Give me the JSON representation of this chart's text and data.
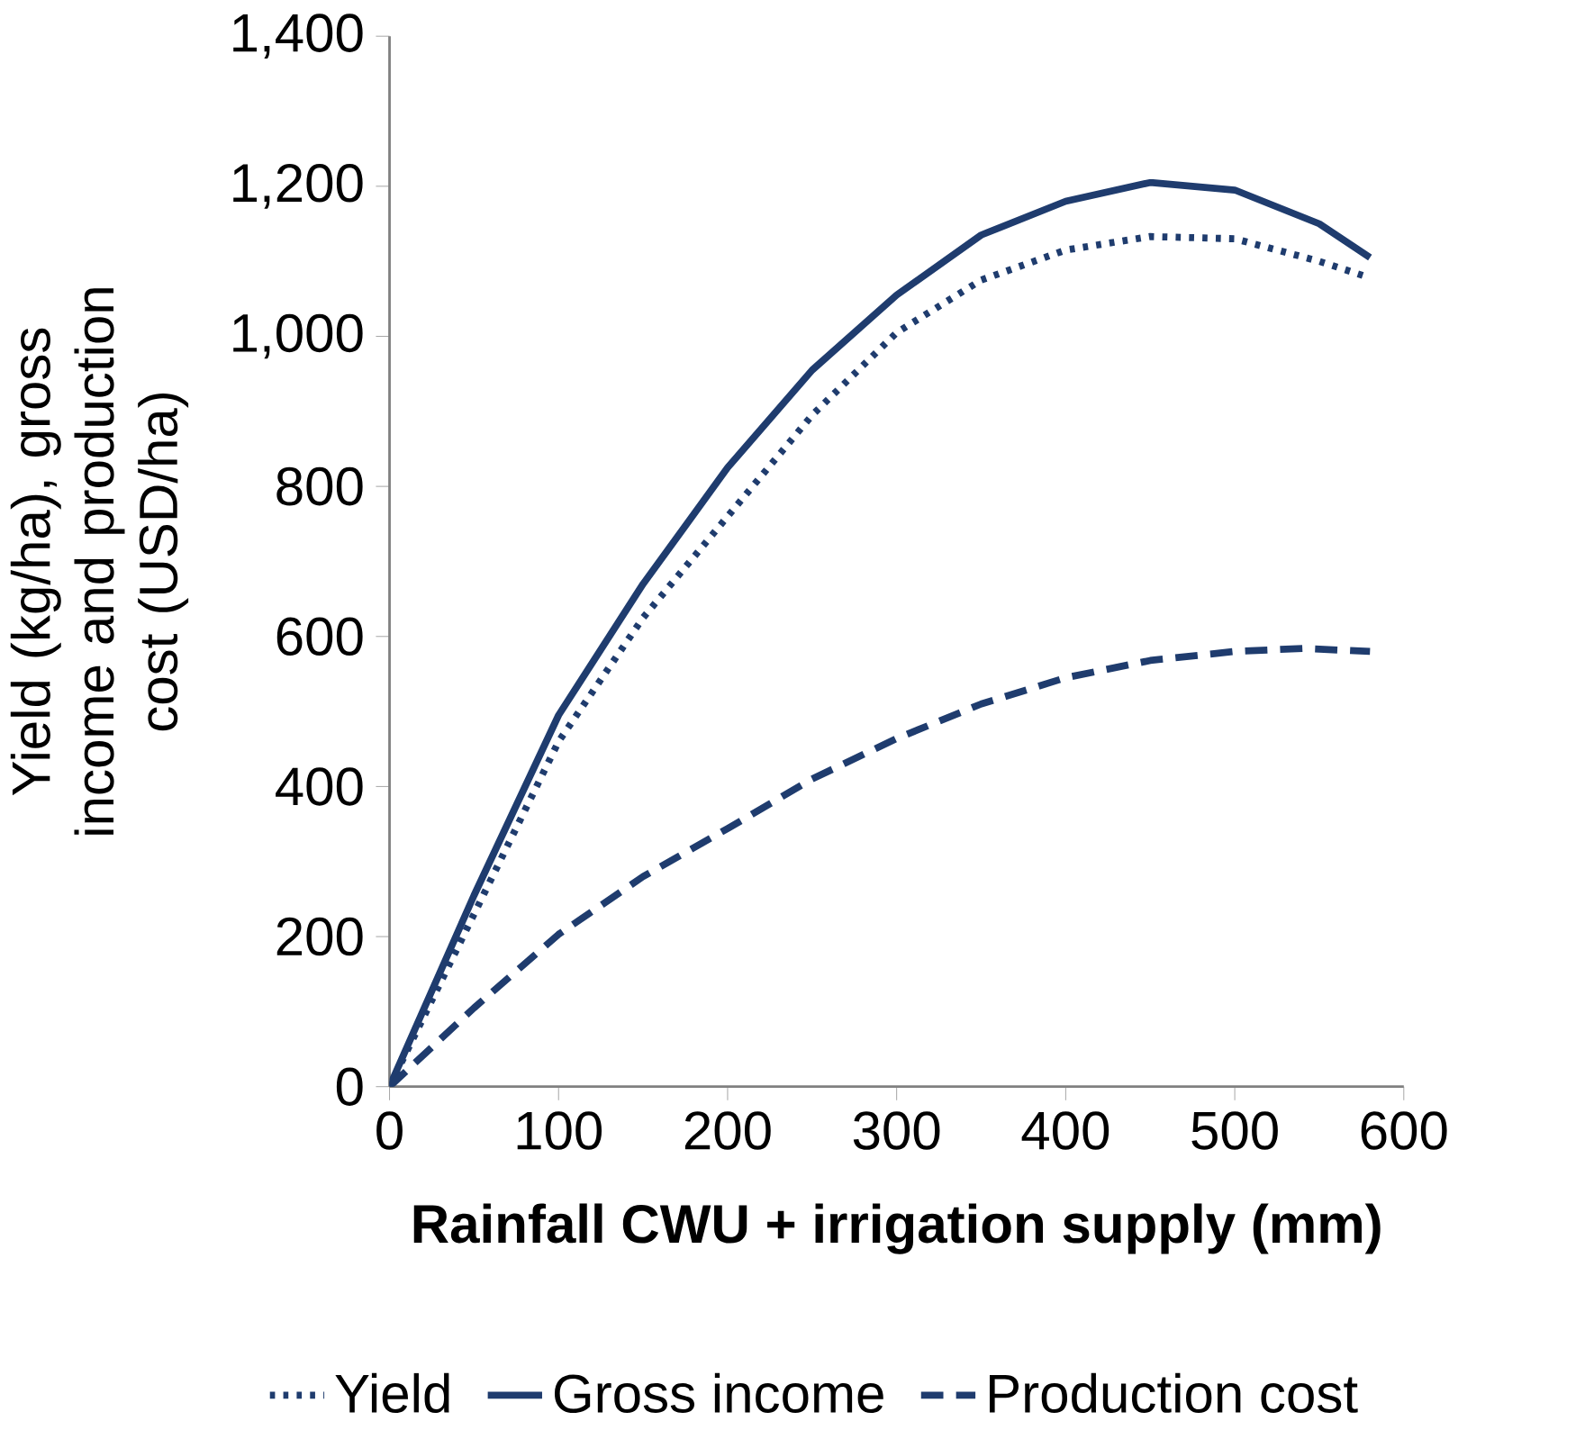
{
  "chart_data": {
    "type": "line",
    "xlabel": "Rainfall CWU + irrigation supply (mm)",
    "ylabel": "Yield (kg/ha), gross income and production cost (USD/ha)",
    "xlim": [
      0,
      600
    ],
    "xticks": [
      0,
      100,
      200,
      300,
      400,
      500,
      600
    ],
    "ylim": [
      0,
      1400
    ],
    "yticks": [
      0,
      200,
      400,
      600,
      800,
      {
        "value": 1000,
        "label": "1,000"
      },
      {
        "value": 1200,
        "label": "1,200"
      },
      {
        "value": 1400,
        "label": "1,400"
      }
    ],
    "grid": false,
    "legend": "bottom",
    "marker": "none",
    "series": [
      {
        "name": "Yield",
        "color": "#1f3c6e",
        "line_style": "dotted",
        "x": [
          0,
          50,
          100,
          150,
          200,
          250,
          300,
          350,
          400,
          450,
          500,
          550,
          580
        ],
        "values": [
          0,
          230,
          460,
          625,
          760,
          895,
          1005,
          1075,
          1115,
          1133,
          1130,
          1100,
          1078
        ]
      },
      {
        "name": "Gross income",
        "color": "#1f3c6e",
        "line_style": "solid",
        "x": [
          0,
          50,
          100,
          150,
          200,
          250,
          300,
          350,
          400,
          450,
          500,
          550,
          580
        ],
        "values": [
          0,
          255,
          495,
          670,
          825,
          955,
          1055,
          1135,
          1180,
          1205,
          1195,
          1150,
          1105
        ]
      },
      {
        "name": "Production cost",
        "color": "#1f3c6e",
        "line_style": "dashed",
        "x": [
          0,
          50,
          100,
          150,
          200,
          250,
          300,
          350,
          400,
          450,
          500,
          540,
          580
        ],
        "values": [
          0,
          105,
          203,
          280,
          344,
          410,
          464,
          510,
          545,
          568,
          580,
          584,
          580
        ]
      }
    ]
  }
}
